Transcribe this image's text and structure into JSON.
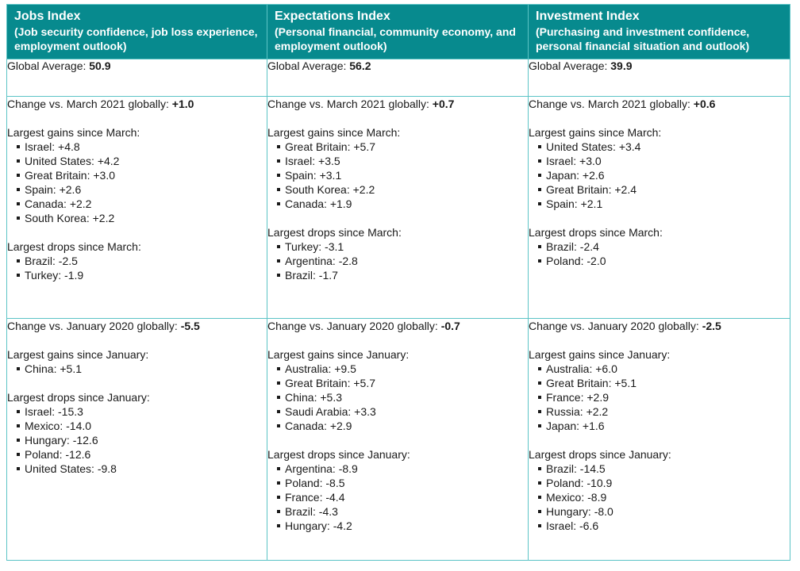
{
  "columns": [
    {
      "title": "Jobs Index",
      "subtitle": "(Job security confidence, job loss experience, employment outlook)",
      "global_avg_label": "Global Average:",
      "global_avg": "50.9",
      "march": {
        "change_label": "Change vs. March 2021 globally:",
        "change_value": "+1.0",
        "gains_label": "Largest gains since March:",
        "gains": [
          "Israel: +4.8",
          "United States: +4.2",
          "Great Britain: +3.0",
          "Spain: +2.6",
          "Canada: +2.2",
          "South Korea: +2.2"
        ],
        "drops_label": "Largest drops since March:",
        "drops": [
          "Brazil: -2.5",
          "Turkey: -1.9"
        ]
      },
      "january": {
        "change_label": "Change vs. January 2020 globally:",
        "change_value": "-5.5",
        "gains_label": "Largest gains since January:",
        "gains": [
          "China: +5.1"
        ],
        "drops_label": "Largest drops since January:",
        "drops": [
          "Israel: -15.3",
          "Mexico: -14.0",
          "Hungary: -12.6",
          "Poland: -12.6",
          "United States: -9.8"
        ]
      }
    },
    {
      "title": "Expectations Index",
      "subtitle": "(Personal financial, community economy, and employment outlook)",
      "global_avg_label": "Global Average:",
      "global_avg": "56.2",
      "march": {
        "change_label": "Change vs. March 2021 globally:",
        "change_value": "+0.7",
        "gains_label": "Largest gains since March:",
        "gains": [
          "Great Britain: +5.7",
          "Israel: +3.5",
          "Spain: +3.1",
          "South Korea: +2.2",
          "Canada: +1.9"
        ],
        "drops_label": "Largest drops since March:",
        "drops": [
          "Turkey: -3.1",
          "Argentina: -2.8",
          "Brazil: -1.7"
        ]
      },
      "january": {
        "change_label": "Change vs. January 2020 globally:",
        "change_value": "-0.7",
        "gains_label": "Largest gains since January:",
        "gains": [
          "Australia: +9.5",
          "Great Britain: +5.7",
          "China: +5.3",
          "Saudi Arabia: +3.3",
          "Canada: +2.9"
        ],
        "drops_label": "Largest drops since January:",
        "drops": [
          "Argentina: -8.9",
          "Poland: -8.5",
          "France: -4.4",
          "Brazil: -4.3",
          "Hungary: -4.2"
        ]
      }
    },
    {
      "title": "Investment Index",
      "subtitle": "(Purchasing and investment confidence, personal financial situation and outlook)",
      "global_avg_label": "Global Average:",
      "global_avg": "39.9",
      "march": {
        "change_label": "Change vs. March 2021 globally:",
        "change_value": "+0.6",
        "gains_label": "Largest gains since March:",
        "gains": [
          "United States: +3.4",
          "Israel: +3.0",
          "Japan: +2.6",
          "Great Britain: +2.4",
          "Spain: +2.1"
        ],
        "drops_label": "Largest drops since March:",
        "drops": [
          "Brazil: -2.4",
          "Poland: -2.0"
        ]
      },
      "january": {
        "change_label": "Change vs. January 2020 globally:",
        "change_value": "-2.5",
        "gains_label": "Largest gains since January:",
        "gains": [
          "Australia: +6.0",
          "Great Britain: +5.1",
          "France: +2.9",
          "Russia: +2.2",
          "Japan: +1.6"
        ],
        "drops_label": "Largest drops since January:",
        "drops": [
          "Brazil: -14.5",
          "Poland: -10.9",
          "Mexico: -8.9",
          "Hungary: -8.0",
          "Israel: -6.6"
        ]
      }
    }
  ]
}
